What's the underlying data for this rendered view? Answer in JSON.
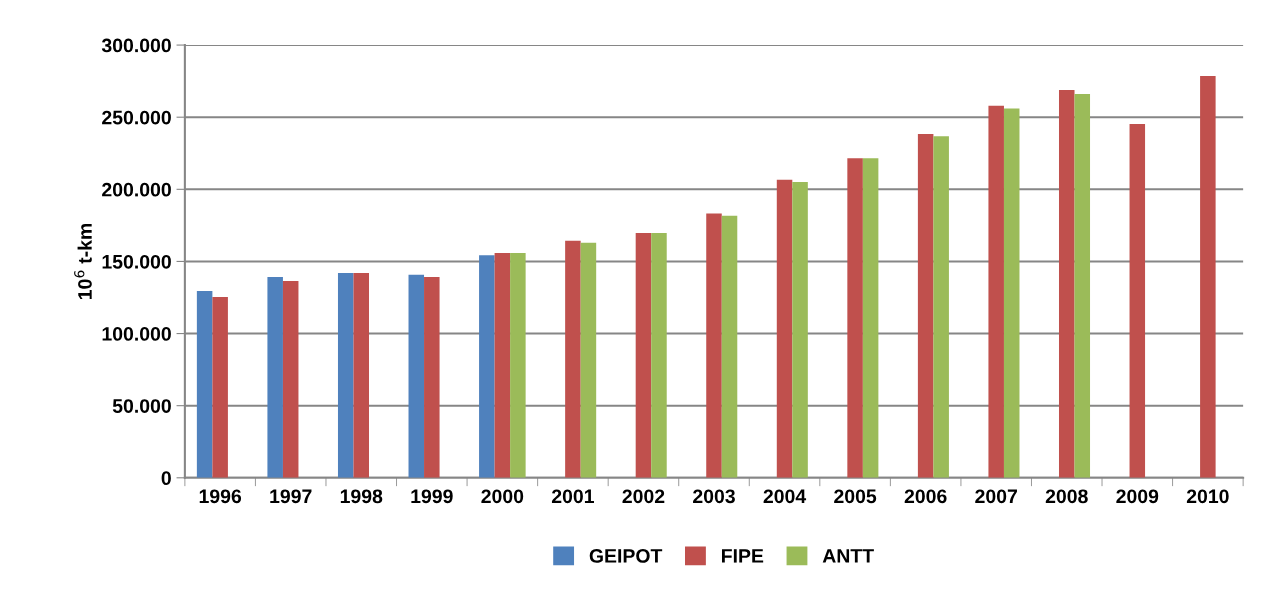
{
  "chart_data": {
    "type": "bar",
    "ylabel": "10$^{6}$ t-km",
    "categories": [
      "1996",
      "1997",
      "1998",
      "1999",
      "2000",
      "2001",
      "2002",
      "2003",
      "2004",
      "2005",
      "2006",
      "2007",
      "2008",
      "2009",
      "2010"
    ],
    "series": [
      {
        "name": "GEIPOT",
        "color": "#4f81bd",
        "values": [
          129500,
          139200,
          141900,
          140700,
          154300,
          null,
          null,
          null,
          null,
          null,
          null,
          null,
          null,
          null,
          null
        ]
      },
      {
        "name": "FIPE",
        "color": "#c0504d",
        "values": [
          125300,
          136500,
          141900,
          139200,
          155800,
          164300,
          169700,
          183300,
          206600,
          221500,
          238300,
          257900,
          268800,
          245200,
          278500
        ]
      },
      {
        "name": "ANTT",
        "color": "#9bbb59",
        "values": [
          null,
          null,
          null,
          null,
          155800,
          163000,
          169700,
          181700,
          205000,
          221500,
          236800,
          256100,
          266000,
          null,
          null
        ]
      }
    ],
    "ylim": [
      0,
      300000
    ],
    "yticks": [
      0,
      {
        "value": 50000,
        "label": "50.000"
      },
      {
        "value": 100000,
        "label": "100.000"
      },
      {
        "value": 150000,
        "label": "150.000"
      },
      {
        "value": 200000,
        "label": "200.000"
      },
      {
        "value": 250000,
        "label": "250.000"
      },
      {
        "value": 300000,
        "label": "300.000"
      }
    ],
    "grid": "y",
    "legend": "bottom"
  }
}
